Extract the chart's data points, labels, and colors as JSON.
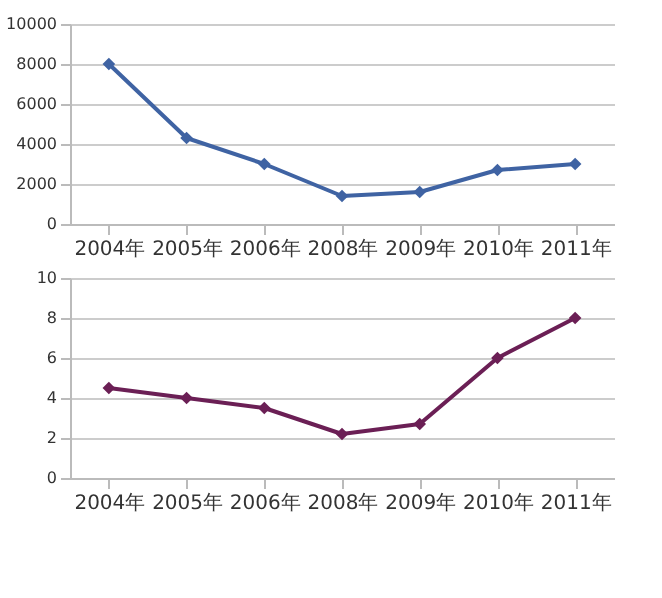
{
  "chart_data": [
    {
      "type": "line",
      "categories": [
        "2004年",
        "2005年",
        "2006年",
        "2008年",
        "2009年",
        "2010年",
        "2011年"
      ],
      "series": [
        {
          "color": "#3f63a3",
          "values": [
            8000,
            4300,
            3000,
            1400,
            1600,
            2700,
            3000
          ]
        }
      ],
      "ylim": [
        0,
        10000
      ],
      "yticks": [
        0,
        2000,
        4000,
        6000,
        8000,
        10000
      ],
      "grid": "y",
      "marker": "diamond",
      "line_style": "solid",
      "legend": false
    },
    {
      "type": "line",
      "categories": [
        "2004年",
        "2005年",
        "2006年",
        "2008年",
        "2009年",
        "2010年",
        "2011年"
      ],
      "series": [
        {
          "color": "#6b1f55",
          "values": [
            4.5,
            4.0,
            3.5,
            2.2,
            2.7,
            6.0,
            8.0
          ]
        }
      ],
      "ylim": [
        0,
        10
      ],
      "yticks": [
        0,
        2,
        4,
        6,
        8,
        10
      ],
      "grid": "y",
      "marker": "diamond",
      "line_style": "solid",
      "legend": false
    }
  ]
}
